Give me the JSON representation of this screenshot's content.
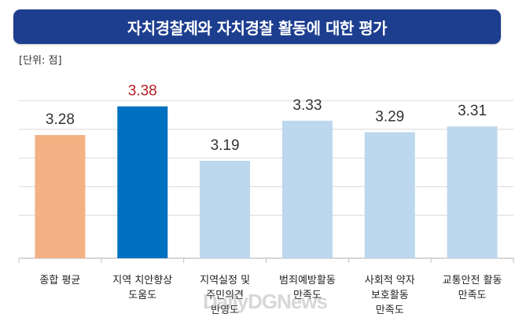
{
  "title": "자치경찰제와 자치경찰 활동에 대한 평가",
  "unit_label": "[단위: 점]",
  "watermark": "DailyDGNews",
  "colors": {
    "title_bg": "#1d3e8f",
    "highlight_label": "#b21f24",
    "overall": "#f4b183",
    "highlight": "#0070c0",
    "other": "#bdd7ee"
  },
  "chart_data": {
    "type": "bar",
    "title": "자치경찰제와 자치경찰 활동에 대한 평가",
    "ylabel": "",
    "xlabel": "",
    "ylim": [
      2.85,
      3.45
    ],
    "grid": true,
    "legend": "none",
    "categories": [
      [
        "종합 평균"
      ],
      [
        "지역 치안향상",
        "도움도"
      ],
      [
        "지역실정 및",
        "주민의견",
        "반영도"
      ],
      [
        "범죄예방활동",
        "만족도"
      ],
      [
        "사회적 약자",
        "보호활동",
        "만족도"
      ],
      [
        "교통안전 활동",
        "만족도"
      ]
    ],
    "values": [
      3.28,
      3.38,
      3.19,
      3.33,
      3.29,
      3.31
    ],
    "value_labels": [
      "3.28",
      "3.38",
      "3.19",
      "3.33",
      "3.29",
      "3.31"
    ],
    "bar_colors": [
      "#f4b183",
      "#0070c0",
      "#bdd7ee",
      "#bdd7ee",
      "#bdd7ee",
      "#bdd7ee"
    ],
    "label_colors": [
      "#333333",
      "#b21f24",
      "#333333",
      "#333333",
      "#333333",
      "#333333"
    ]
  }
}
